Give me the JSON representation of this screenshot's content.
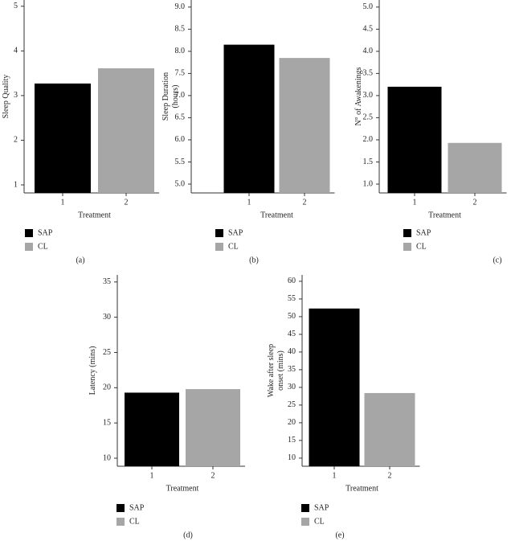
{
  "chart_data": [
    {
      "type": "bar",
      "ylabel": "Sleep Quality",
      "xlabel": "Treatment",
      "categories": [
        "1",
        "2"
      ],
      "values": [
        3.27,
        3.61
      ],
      "colors": [
        "#000000",
        "#a6a6a6"
      ],
      "legend": [
        "SAP",
        "CL"
      ],
      "ylim": [
        0.82,
        5.14
      ],
      "yticks": [
        1,
        2,
        3,
        4,
        5
      ],
      "caption": "(a)"
    },
    {
      "type": "bar",
      "ylabel": "Sleep Duration (hours)",
      "xlabel": "Treatment",
      "categories": [
        "1",
        "2"
      ],
      "values": [
        8.15,
        7.85
      ],
      "colors": [
        "#000000",
        "#a6a6a6"
      ],
      "legend": [
        "SAP",
        "CL"
      ],
      "ylim": [
        4.8,
        9.16
      ],
      "yticks": [
        {
          "value": 5,
          "label": "5.0"
        },
        5.5,
        {
          "value": 6,
          "label": "6.0"
        },
        6.5,
        {
          "value": 7,
          "label": "7.0"
        },
        7.5,
        {
          "value": 8,
          "label": "8.0"
        },
        8.5,
        {
          "value": 9,
          "label": "9.0"
        }
      ],
      "caption": "(b)"
    },
    {
      "type": "bar",
      "ylabel": "N° of Awakenings",
      "xlabel": "Treatment",
      "categories": [
        "1",
        "2"
      ],
      "values": [
        3.2,
        1.93
      ],
      "colors": [
        "#000000",
        "#a6a6a6"
      ],
      "legend": [
        "SAP",
        "CL"
      ],
      "ylim": [
        0.8,
        5.16
      ],
      "yticks": [
        {
          "value": 1,
          "label": "1.0"
        },
        1.5,
        {
          "value": 2,
          "label": "2.0"
        },
        2.5,
        {
          "value": 3,
          "label": "3.0"
        },
        3.5,
        {
          "value": 4,
          "label": "4.0"
        },
        4.5,
        {
          "value": 5,
          "label": "5.0"
        }
      ],
      "caption": "(c)"
    },
    {
      "type": "bar",
      "ylabel": "Latency (mins)",
      "xlabel": "Treatment",
      "categories": [
        "1",
        "2"
      ],
      "values": [
        19.3,
        19.8
      ],
      "colors": [
        "#000000",
        "#a6a6a6"
      ],
      "legend": [
        "SAP",
        "CL"
      ],
      "ylim": [
        8.86,
        36
      ],
      "yticks": [
        10,
        15,
        20,
        25,
        30,
        35
      ],
      "caption": "(d)"
    },
    {
      "type": "bar",
      "ylabel": "Wake after sleep onset (mins)",
      "xlabel": "Treatment",
      "categories": [
        "1",
        "2"
      ],
      "values": [
        52.3,
        28.4
      ],
      "colors": [
        "#000000",
        "#a6a6a6"
      ],
      "legend": [
        "SAP",
        "CL"
      ],
      "ylim": [
        7.7,
        61.8
      ],
      "yticks": [
        10,
        15,
        20,
        25,
        30,
        35,
        40,
        45,
        50,
        55,
        60
      ],
      "caption": "(e)"
    }
  ]
}
